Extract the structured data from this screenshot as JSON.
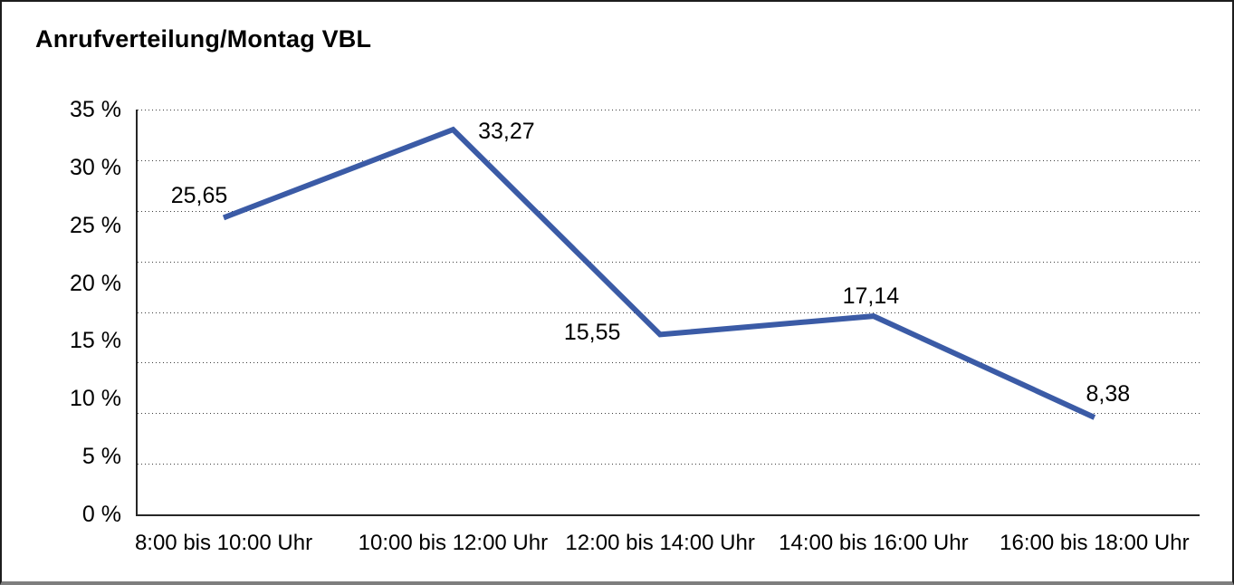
{
  "title": "Anrufverteilung/Montag VBL",
  "chart_data": {
    "type": "line",
    "title": "Anrufverteilung/Montag VBL",
    "categories": [
      "8:00 bis 10:00 Uhr",
      "10:00 bis 12:00 Uhr",
      "12:00 bis 14:00 Uhr",
      "14:00 bis 16:00 Uhr",
      "16:00 bis 18:00 Uhr"
    ],
    "values": [
      25.65,
      33.27,
      15.55,
      17.14,
      8.38
    ],
    "value_labels": [
      "25,65",
      "33,27",
      "15,55",
      "17,14",
      "8,38"
    ],
    "xlabel": "",
    "ylabel": "",
    "ylim": [
      0,
      35
    ],
    "ytick_step": 5,
    "ytick_labels_top_to_bottom": [
      "35 %",
      "30 %",
      "25 %",
      "20 %",
      "15 %",
      "10 %",
      "5 %",
      "0 %"
    ],
    "grid": "horizontal-dotted",
    "dotted_gridline_count": 8,
    "legend": "none",
    "line_color": "#3B5BA6"
  },
  "colors": {
    "line": "#3B5BA6",
    "text": "#000000",
    "axis": "#262626",
    "grid_dots": "#3d3d3d",
    "frame_border": "#1c1c1c",
    "frame_border_bottom": "#7e7e7e",
    "background": "#ffffff"
  }
}
